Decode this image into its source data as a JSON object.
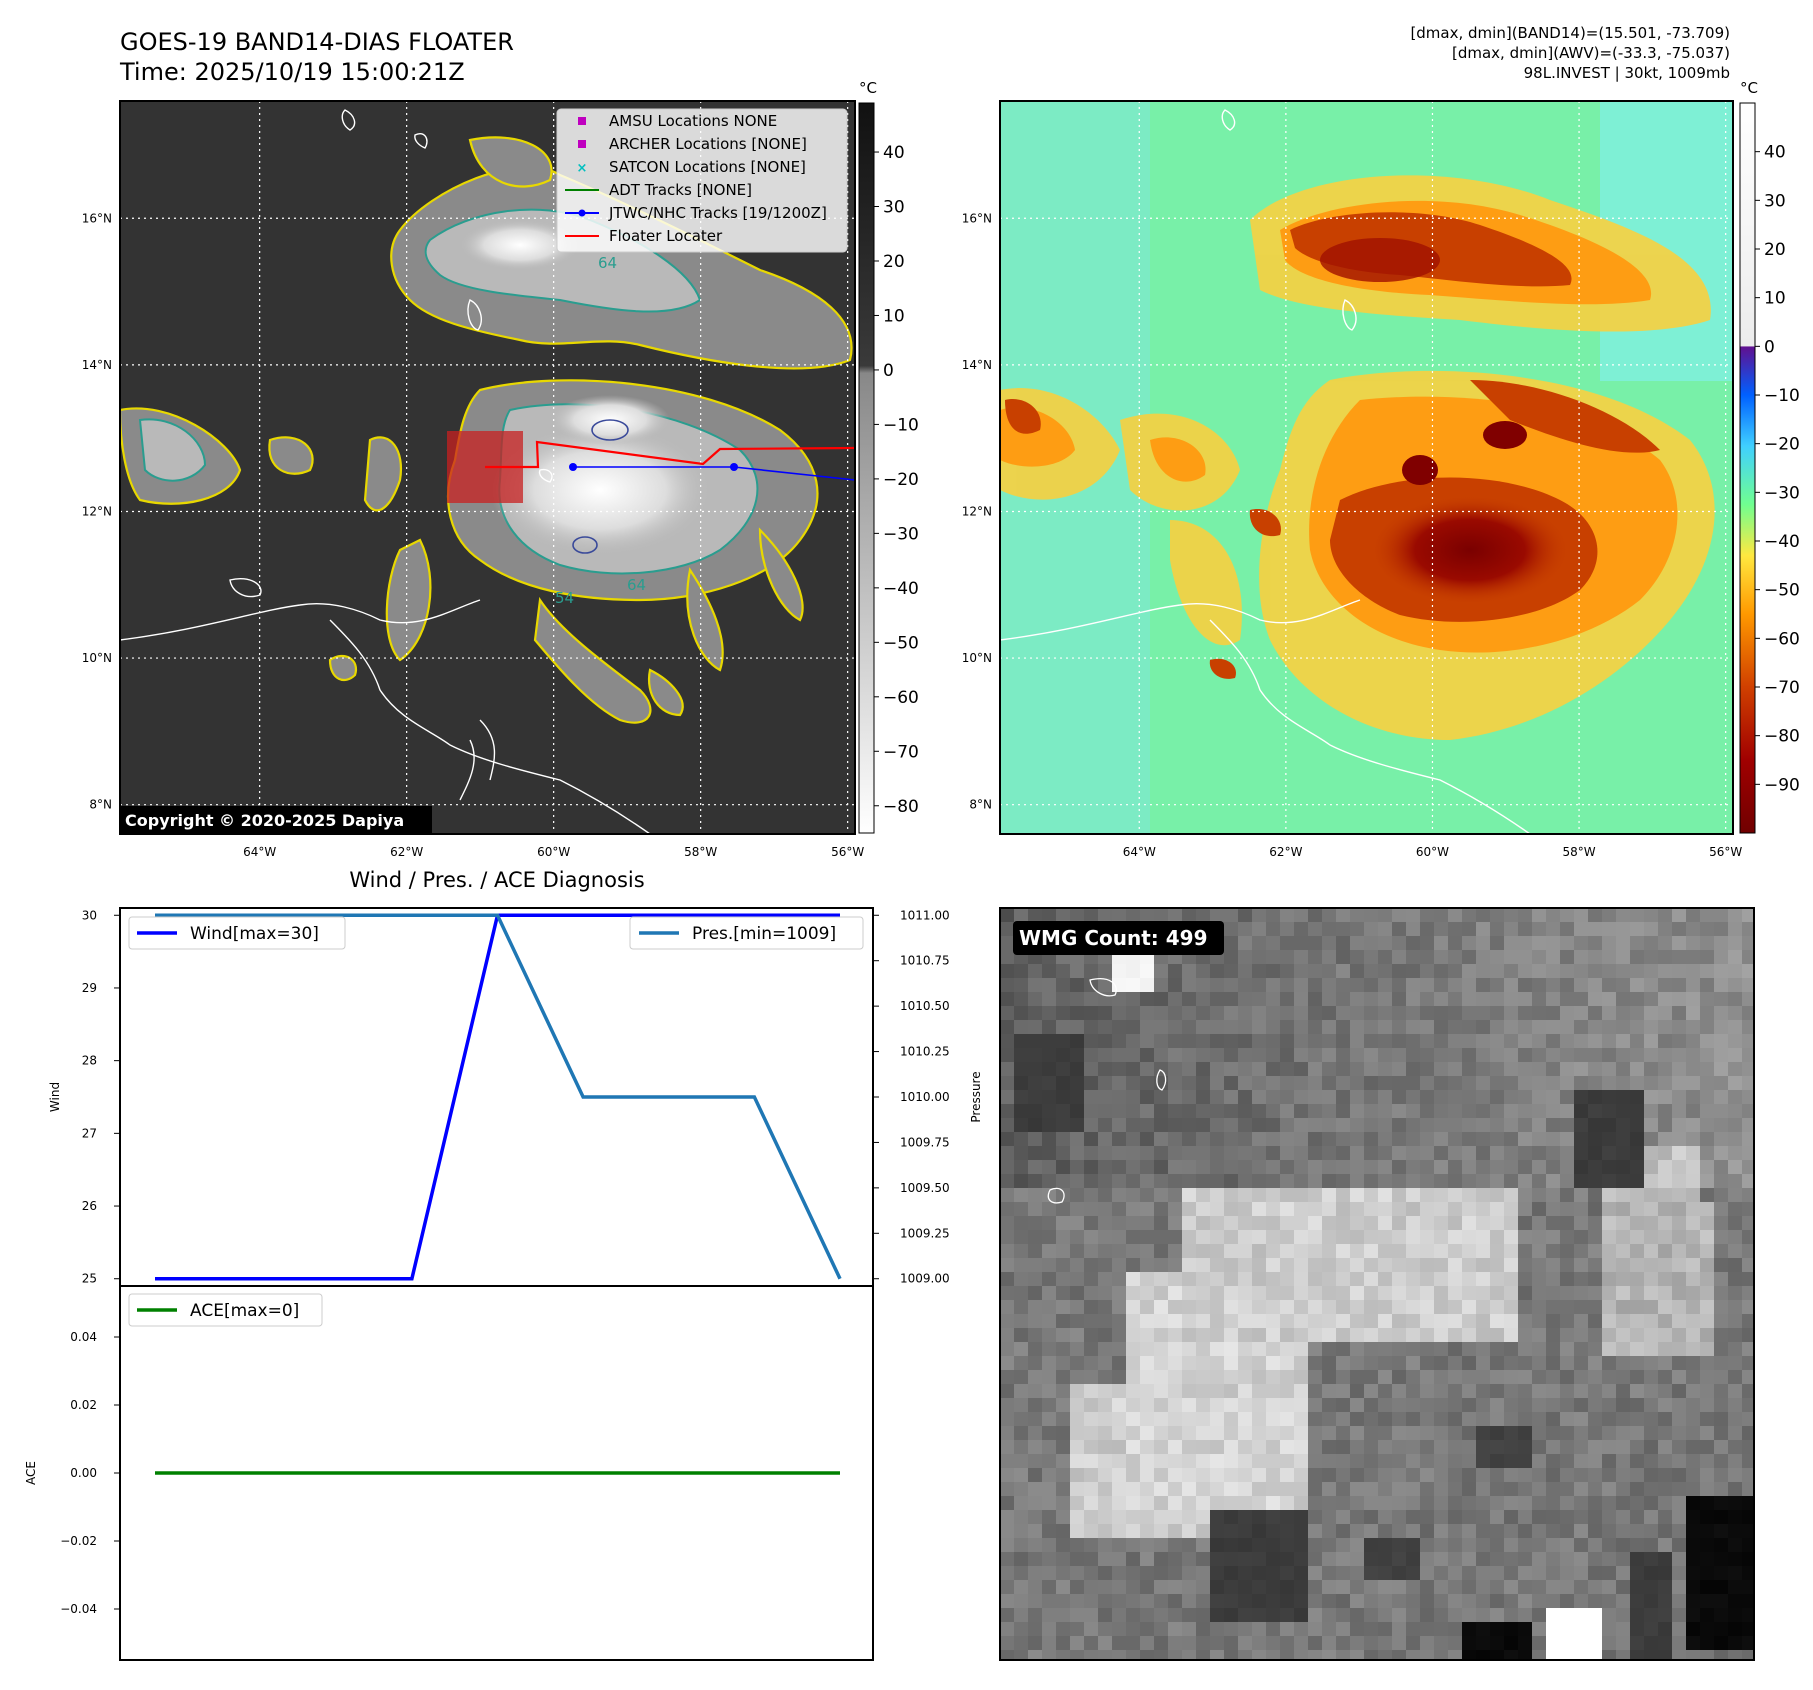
{
  "header": {
    "title_line1": "GOES-19 BAND14-DIAS FLOATER",
    "title_line2": "Time: 2025/10/19 15:00:21Z",
    "info_line1": "[dmax, dmin](BAND14)=(15.501, -73.709)",
    "info_line2": "[dmax, dmin](AWV)=(-33.3, -75.037)",
    "info_line3": "98L.INVEST | 30kt, 1009mb"
  },
  "map_axes": {
    "lat_labels": [
      "16°N",
      "14°N",
      "12°N",
      "10°N",
      "8°N"
    ],
    "lat_values": [
      16,
      14,
      12,
      10,
      8
    ],
    "lon_labels": [
      "64°W",
      "62°W",
      "60°W",
      "58°W",
      "56°W"
    ],
    "lon_values": [
      -64,
      -62,
      -60,
      -58,
      -56
    ],
    "lon_range": [
      -65.9,
      -55.9
    ],
    "lat_range": [
      7.6,
      17.6
    ]
  },
  "colorbar_left": {
    "unit": "°C",
    "ticks": [
      "40",
      "30",
      "20",
      "10",
      "0",
      "−10",
      "−20",
      "−30",
      "−40",
      "−50",
      "−60",
      "−70",
      "−80"
    ],
    "range": [
      -85,
      49
    ]
  },
  "colorbar_right": {
    "unit": "°C",
    "ticks": [
      "40",
      "30",
      "20",
      "10",
      "0",
      "−10",
      "−20",
      "−30",
      "−40",
      "−50",
      "−60",
      "−70",
      "−80",
      "−90"
    ],
    "range": [
      -100,
      50
    ]
  },
  "legend": {
    "items": [
      {
        "label": "AMSU Locations NONE",
        "kind": "square",
        "color": "#bf00bf"
      },
      {
        "label": "ARCHER Locations [NONE]",
        "kind": "square",
        "color": "#bf00bf"
      },
      {
        "label": "SATCON Locations [NONE]",
        "kind": "x",
        "color": "#00bfbf"
      },
      {
        "label": "ADT Tracks [NONE]",
        "kind": "line",
        "color": "#008000"
      },
      {
        "label": "JTWC/NHC Tracks [19/1200Z]",
        "kind": "line-dot",
        "color": "#0000ff"
      },
      {
        "label": "Floater Locater",
        "kind": "line",
        "color": "#ff0000"
      }
    ]
  },
  "copyright": "Copyright © 2020-2025 Dapiya",
  "contour_labels": [
    "64",
    "64",
    "54"
  ],
  "wmg": {
    "label": "WMG Count: 499"
  },
  "chart_data": [
    {
      "type": "line",
      "title": "Wind / Pres. / ACE Diagnosis",
      "x": [
        0,
        1,
        2,
        3,
        4,
        5,
        6,
        7,
        8
      ],
      "series": [
        {
          "name": "Wind[max=30]",
          "axis": "left",
          "color": "#0000ff",
          "values": [
            25,
            25,
            25,
            25,
            30,
            30,
            30,
            30,
            30
          ]
        },
        {
          "name": "Pres.[min=1009]",
          "axis": "right",
          "color": "#1f77b4",
          "values": [
            1011,
            1011,
            1011,
            1011,
            1011,
            1010,
            1010,
            1010,
            1009
          ]
        }
      ],
      "ylabel": "Wind",
      "y2label": "Pressure",
      "ylim": [
        24.9,
        30.1
      ],
      "y2lim": [
        1008.96,
        1011.04
      ],
      "yticks": [
        "25",
        "26",
        "27",
        "28",
        "29",
        "30"
      ],
      "y2ticks": [
        "1009.00",
        "1009.25",
        "1009.50",
        "1009.75",
        "1010.00",
        "1010.25",
        "1010.50",
        "1010.75",
        "1011.00"
      ]
    },
    {
      "type": "line",
      "x": [
        0,
        8
      ],
      "series": [
        {
          "name": "ACE[max=0]",
          "color": "#008000",
          "values": [
            0,
            0
          ]
        }
      ],
      "ylabel": "ACE",
      "ylim": [
        -0.055,
        0.055
      ],
      "yticks": [
        "0.04",
        "0.02",
        "0.00",
        "−0.02",
        "−0.04"
      ]
    }
  ]
}
